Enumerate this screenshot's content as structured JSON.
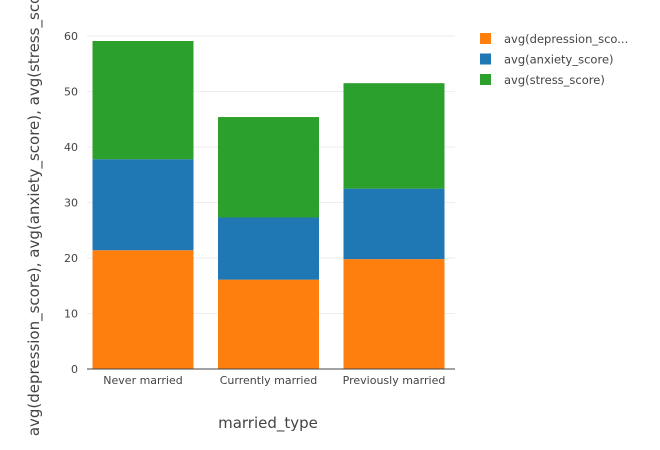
{
  "chart_data": {
    "type": "bar",
    "stacked": true,
    "xlabel": "married_type",
    "ylabel": "avg(depression_score), avg(anxiety_score), avg(stress_score)",
    "categories": [
      "Never married",
      "Currently married",
      "Previously married"
    ],
    "series": [
      {
        "name": "avg(depression_score)",
        "legend_label": "avg(depression_sco...",
        "color": "#ff7f0e",
        "values": [
          21.4,
          16.1,
          19.8
        ]
      },
      {
        "name": "avg(anxiety_score)",
        "legend_label": "avg(anxiety_score)",
        "color": "#1f77b4",
        "values": [
          16.4,
          11.2,
          12.7
        ]
      },
      {
        "name": "avg(stress_score)",
        "legend_label": "avg(stress_score)",
        "color": "#2ca02c",
        "values": [
          21.3,
          18.1,
          19.0
        ]
      }
    ],
    "ylim": [
      0,
      60
    ],
    "yticks": [
      0,
      10,
      20,
      30,
      40,
      50,
      60
    ],
    "grid": true,
    "legend_position": "top-right"
  }
}
